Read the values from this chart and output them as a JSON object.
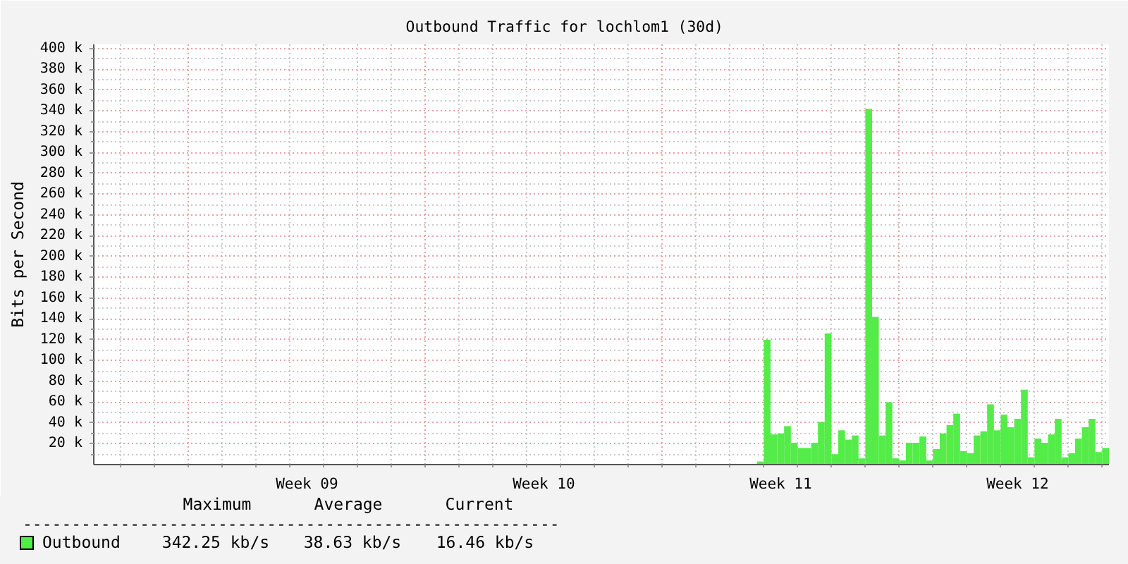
{
  "chart_data": {
    "type": "bar",
    "title": "Outbound Traffic for lochlom1 (30d)",
    "ylabel": "Bits per Second",
    "categories": [
      null,
      null,
      null,
      null,
      null,
      null,
      null,
      null,
      null,
      null,
      null,
      null,
      null,
      null,
      null,
      null,
      null,
      null,
      null,
      null,
      null,
      null,
      null,
      null,
      null,
      null,
      null,
      null,
      null,
      null,
      null,
      "Week 09",
      null,
      null,
      null,
      null,
      null,
      null,
      null,
      null,
      null,
      null,
      null,
      null,
      null,
      null,
      null,
      null,
      null,
      null,
      null,
      null,
      null,
      null,
      null,
      null,
      null,
      null,
      null,
      null,
      null,
      null,
      null,
      null,
      null,
      null,
      "Week 10",
      null,
      null,
      null,
      null,
      null,
      null,
      null,
      null,
      null,
      null,
      null,
      null,
      null,
      null,
      null,
      null,
      null,
      null,
      null,
      null,
      null,
      null,
      null,
      null,
      null,
      null,
      null,
      null,
      null,
      null,
      null,
      null,
      null,
      null,
      "Week 11",
      null,
      null,
      null,
      null,
      null,
      null,
      null,
      null,
      null,
      null,
      null,
      null,
      null,
      null,
      null,
      null,
      null,
      null,
      null,
      null,
      null,
      null,
      null,
      null,
      null,
      null,
      null,
      null,
      null,
      null,
      null,
      null,
      null,
      null,
      "Week 12",
      null,
      null,
      null,
      null,
      null,
      null,
      null,
      null,
      null,
      null,
      null,
      null,
      null
    ],
    "series": [
      {
        "name": "Outbound",
        "color": "#54ec48",
        "values": [
          null,
          null,
          null,
          null,
          null,
          null,
          null,
          null,
          null,
          null,
          null,
          null,
          null,
          null,
          null,
          null,
          null,
          null,
          null,
          null,
          null,
          null,
          null,
          null,
          null,
          null,
          null,
          null,
          null,
          null,
          null,
          null,
          null,
          null,
          null,
          null,
          null,
          null,
          null,
          null,
          null,
          null,
          null,
          null,
          null,
          null,
          null,
          null,
          null,
          null,
          null,
          null,
          null,
          null,
          null,
          null,
          null,
          null,
          null,
          null,
          null,
          null,
          null,
          null,
          null,
          null,
          null,
          null,
          null,
          null,
          null,
          null,
          null,
          null,
          null,
          null,
          null,
          null,
          null,
          null,
          null,
          null,
          null,
          null,
          null,
          null,
          null,
          null,
          null,
          null,
          null,
          null,
          null,
          null,
          null,
          null,
          null,
          null,
          3,
          120,
          29,
          30,
          37,
          21,
          16,
          16,
          21,
          41,
          126,
          10,
          33,
          24,
          28,
          6,
          342,
          142,
          28,
          60,
          6,
          4,
          21,
          21,
          27,
          4,
          15,
          30,
          38,
          49,
          13,
          11,
          28,
          32,
          58,
          33,
          48,
          36,
          44,
          72,
          7,
          25,
          21,
          29,
          44,
          7,
          11,
          25,
          36,
          44,
          12,
          16
        ]
      }
    ],
    "ylim": [
      0,
      404
    ],
    "yticks": [
      {
        "value": 20,
        "label": "20 k"
      },
      {
        "value": 40,
        "label": "40 k"
      },
      {
        "value": 60,
        "label": "60 k"
      },
      {
        "value": 80,
        "label": "80 k"
      },
      {
        "value": 100,
        "label": "100 k"
      },
      {
        "value": 120,
        "label": "120 k"
      },
      {
        "value": 140,
        "label": "140 k"
      },
      {
        "value": 160,
        "label": "160 k"
      },
      {
        "value": 180,
        "label": "180 k"
      },
      {
        "value": 200,
        "label": "200 k"
      },
      {
        "value": 220,
        "label": "220 k"
      },
      {
        "value": 240,
        "label": "240 k"
      },
      {
        "value": 260,
        "label": "260 k"
      },
      {
        "value": 280,
        "label": "280 k"
      },
      {
        "value": 300,
        "label": "300 k"
      },
      {
        "value": 320,
        "label": "320 k"
      },
      {
        "value": 340,
        "label": "340 k"
      },
      {
        "value": 360,
        "label": "360 k"
      },
      {
        "value": 380,
        "label": "380 k"
      },
      {
        "value": 400,
        "label": "400 k"
      }
    ],
    "grid": true,
    "legend": "bottom left",
    "annotations": [
      "Maximum",
      "Average",
      "Current",
      "-------------------------------------------------------",
      "342.25 kb/s",
      "38.63 kb/s",
      "16.46 kb/s"
    ]
  }
}
